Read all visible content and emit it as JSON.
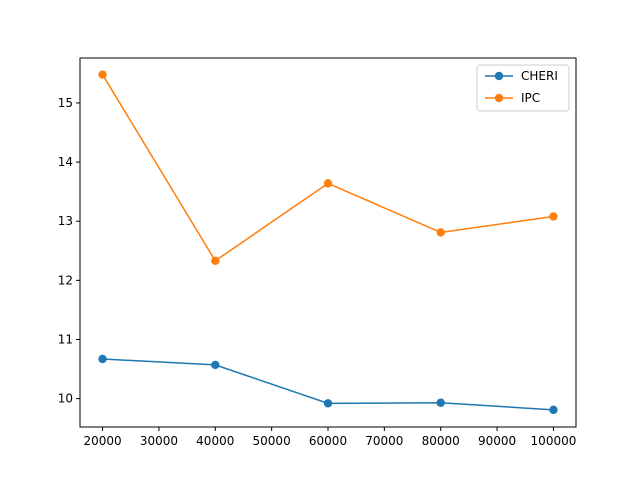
{
  "chart_data": {
    "type": "line",
    "title": "",
    "xlabel": "",
    "ylabel": "",
    "x": [
      20000,
      40000,
      60000,
      80000,
      100000
    ],
    "xlim": [
      16000,
      104000
    ],
    "ylim": [
      9.52,
      15.76
    ],
    "xticks": [
      20000,
      30000,
      40000,
      50000,
      60000,
      70000,
      80000,
      90000,
      100000
    ],
    "yticks": [
      10,
      11,
      12,
      13,
      14,
      15
    ],
    "grid": false,
    "legend_position": "top-right",
    "series": [
      {
        "name": "CHERI",
        "color": "#1f77b4",
        "marker": "circle",
        "values": [
          10.67,
          10.57,
          9.92,
          9.93,
          9.81
        ]
      },
      {
        "name": "IPC",
        "color": "#ff7f0e",
        "marker": "circle",
        "values": [
          15.48,
          12.33,
          13.64,
          12.81,
          13.08
        ]
      }
    ]
  }
}
